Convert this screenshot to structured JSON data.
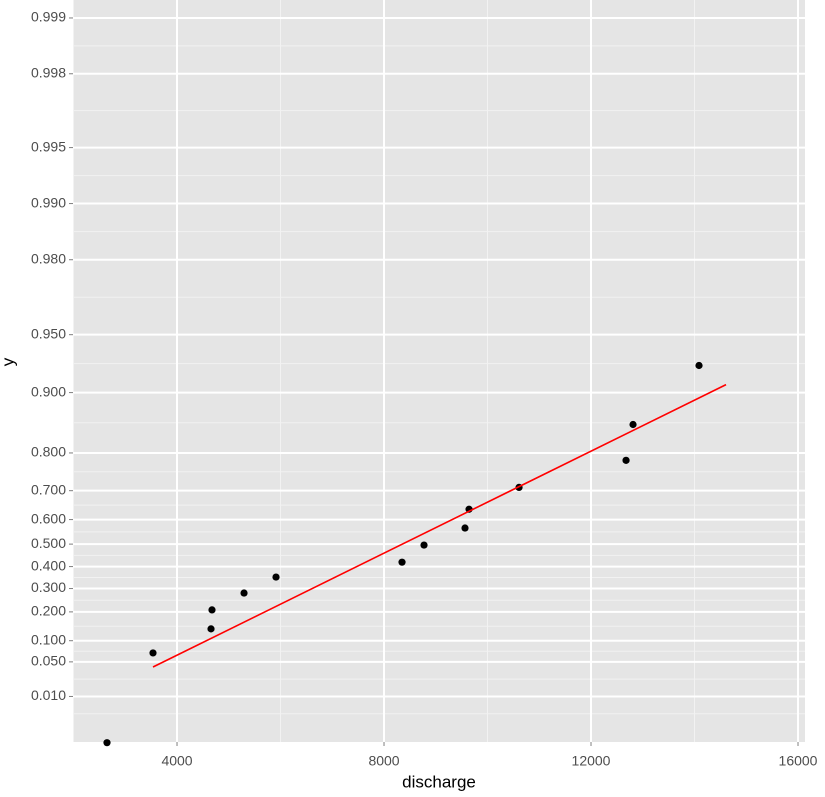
{
  "chart_data": {
    "type": "scatter",
    "x_label": "discharge",
    "y_label": "y",
    "yscale": "gumbel",
    "xlim": [
      1990,
      16135
    ],
    "ylim": [
      0.0003,
      0.9992
    ],
    "xticks": [
      4000,
      8000,
      12000,
      16000
    ],
    "yticks": [
      {
        "value": 0.01,
        "label": "0.010"
      },
      {
        "value": 0.05,
        "label": "0.050"
      },
      {
        "value": 0.1,
        "label": "0.100"
      },
      {
        "value": 0.2,
        "label": "0.200"
      },
      {
        "value": 0.3,
        "label": "0.300"
      },
      {
        "value": 0.4,
        "label": "0.400"
      },
      {
        "value": 0.5,
        "label": "0.500"
      },
      {
        "value": 0.6,
        "label": "0.600"
      },
      {
        "value": 0.7,
        "label": "0.700"
      },
      {
        "value": 0.8,
        "label": "0.800"
      },
      {
        "value": 0.9,
        "label": "0.900"
      },
      {
        "value": 0.95,
        "label": "0.950"
      },
      {
        "value": 0.98,
        "label": "0.980"
      },
      {
        "value": 0.99,
        "label": "0.990"
      },
      0.995,
      0.998,
      0.999
    ],
    "grid": true,
    "series": [
      {
        "mode": "points",
        "color": "#000000",
        "x": [
          2647,
          3536,
          4657,
          4676,
          5295,
          5913,
          8348,
          8773,
          9565,
          9643,
          10609,
          12677,
          12812,
          14087
        ],
        "values": [
          0.00028,
          0.0685,
          0.137,
          0.208,
          0.28,
          0.352,
          0.42,
          0.496,
          0.567,
          0.638,
          0.71,
          0.783,
          0.855,
          0.9275
        ]
      },
      {
        "mode": "line",
        "color": "#ff0000",
        "x": [
          3536,
          14609
        ],
        "values": [
          0.041,
          0.909
        ]
      }
    ]
  }
}
